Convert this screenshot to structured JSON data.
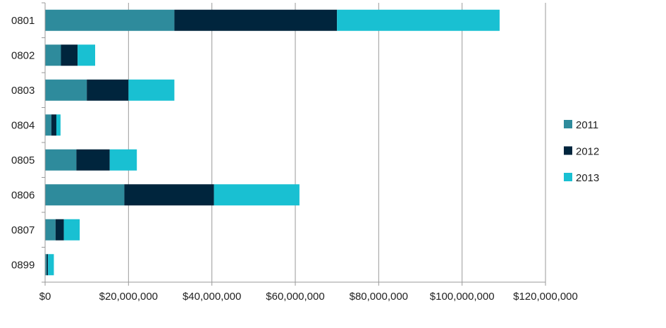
{
  "chart_data": {
    "type": "bar",
    "orientation": "horizontal",
    "stacked": true,
    "title": "",
    "xlabel": "",
    "ylabel": "",
    "categories": [
      "0801",
      "0802",
      "0803",
      "0804",
      "0805",
      "0806",
      "0807",
      "0899"
    ],
    "series": [
      {
        "name": "2011",
        "color": "#2e8b9c",
        "values": [
          31000000,
          3800000,
          10000000,
          1500000,
          7500000,
          19000000,
          2500000,
          400000
        ]
      },
      {
        "name": "2012",
        "color": "#00253d",
        "values": [
          39000000,
          4000000,
          10000000,
          1200000,
          8000000,
          21500000,
          2000000,
          300000
        ]
      },
      {
        "name": "2013",
        "color": "#19c0d2",
        "values": [
          39000000,
          4200000,
          11000000,
          1000000,
          6500000,
          20500000,
          3800000,
          1400000
        ]
      }
    ],
    "xlim": [
      0,
      120000000
    ],
    "x_tick_labels": [
      "$0",
      "$20,000,000",
      "$40,000,000",
      "$60,000,000",
      "$80,000,000",
      "$100,000,000",
      "$120,000,000"
    ],
    "grid": "vertical",
    "legend_position": "right"
  }
}
